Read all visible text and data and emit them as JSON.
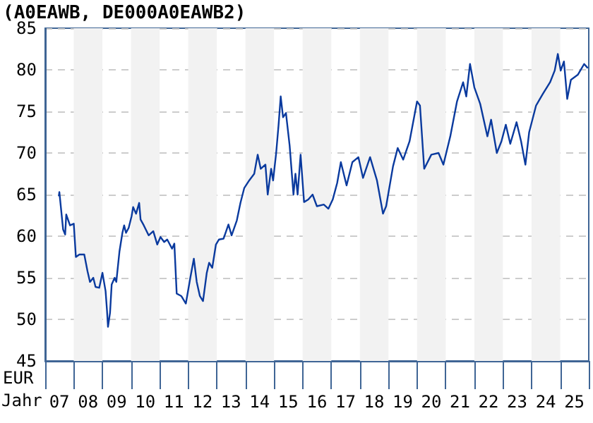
{
  "chart_data": {
    "type": "line",
    "title": "(A0EAWB, DE000A0EAWB2)",
    "xlabel": "Jahr",
    "ylabel": "EUR",
    "series": [
      {
        "color": "#0a3a9e",
        "x": [
          "2007-06-24",
          "2007-07-01",
          "2007-08-18",
          "2007-09-13",
          "2007-09-27",
          "2007-11-14",
          "2008-01-01",
          "2008-01-28",
          "2008-03-13",
          "2008-05-14",
          "2008-06-24",
          "2008-07-26",
          "2008-09-06",
          "2008-10-05",
          "2008-11-21",
          "2009-01-01",
          "2009-02-10",
          "2009-02-28",
          "2009-03-13",
          "2009-04-08",
          "2009-04-29",
          "2009-06-06",
          "2009-06-27",
          "2009-08-07",
          "2009-09-13",
          "2009-10-05",
          "2009-10-29",
          "2009-12-02",
          "2010-01-08",
          "2010-01-28",
          "2010-03-06",
          "2010-04-15",
          "2010-05-03",
          "2010-06-13",
          "2010-08-14",
          "2010-10-12",
          "2010-12-02",
          "2011-01-12",
          "2011-02-28",
          "2011-04-08",
          "2011-06-09",
          "2011-07-08",
          "2011-08-07",
          "2011-10-05",
          "2011-12-02",
          "2012-01-28",
          "2012-03-13",
          "2012-04-19",
          "2012-05-29",
          "2012-07-08",
          "2012-08-25",
          "2012-09-24",
          "2012-11-03",
          "2012-12-20",
          "2013-01-28",
          "2013-03-27",
          "2013-05-29",
          "2013-07-08",
          "2013-09-13",
          "2013-10-29",
          "2013-12-17",
          "2014-02-18",
          "2014-04-23",
          "2014-06-06",
          "2014-07-15",
          "2014-09-13",
          "2014-10-12",
          "2014-11-25",
          "2014-12-20",
          "2015-01-28",
          "2015-02-28",
          "2015-03-27",
          "2015-04-26",
          "2015-06-02",
          "2015-07-19",
          "2015-09-06",
          "2015-10-01",
          "2015-10-29",
          "2015-12-06",
          "2016-01-19",
          "2016-03-13",
          "2016-05-07",
          "2016-07-01",
          "2016-09-27",
          "2016-11-25",
          "2017-01-19",
          "2017-03-17",
          "2017-05-03",
          "2017-07-15",
          "2017-09-27",
          "2017-12-13",
          "2018-02-10",
          "2018-05-11",
          "2018-08-07",
          "2018-10-23",
          "2018-12-02",
          "2019-02-28",
          "2019-04-29",
          "2019-07-08",
          "2019-09-27",
          "2020-01-01",
          "2020-02-07",
          "2020-04-01",
          "2020-07-01",
          "2020-10-01",
          "2020-12-02",
          "2021-02-28",
          "2021-05-25",
          "2021-08-11",
          "2021-09-20",
          "2021-11-07",
          "2022-01-01",
          "2022-03-17",
          "2022-06-17",
          "2022-08-03",
          "2022-10-15",
          "2022-12-13",
          "2023-02-07",
          "2023-04-05",
          "2023-06-24",
          "2023-08-21",
          "2023-10-15",
          "2023-12-02",
          "2024-02-28",
          "2024-05-25",
          "2024-08-25",
          "2024-10-23",
          "2024-12-02",
          "2025-01-08",
          "2025-02-18",
          "2025-04-01",
          "2025-05-18",
          "2025-08-14",
          "2025-11-03",
          "2025-12-20"
        ],
        "values": [
          64.8,
          65.3,
          60.8,
          60.2,
          62.6,
          61.3,
          61.5,
          57.5,
          57.8,
          57.8,
          55.8,
          54.5,
          55.0,
          53.9,
          53.8,
          55.6,
          53.4,
          51.1,
          49.1,
          50.8,
          54.2,
          55.0,
          54.5,
          58.2,
          60.4,
          61.3,
          60.4,
          61.0,
          62.4,
          63.5,
          62.7,
          64.0,
          62.0,
          61.3,
          60.1,
          60.6,
          59.0,
          59.9,
          59.3,
          59.6,
          58.5,
          59.1,
          53.1,
          52.8,
          51.9,
          55.0,
          57.3,
          54.5,
          52.8,
          52.2,
          55.6,
          56.8,
          56.2,
          59.0,
          59.6,
          59.7,
          61.4,
          60.1,
          61.9,
          64.0,
          65.8,
          66.7,
          67.5,
          69.8,
          68.1,
          68.6,
          65.0,
          68.1,
          66.7,
          70.0,
          73.4,
          76.8,
          74.3,
          74.8,
          70.9,
          65.0,
          67.5,
          65.0,
          69.8,
          64.1,
          64.4,
          65.0,
          63.6,
          63.8,
          63.3,
          64.4,
          66.4,
          68.9,
          66.1,
          68.9,
          69.5,
          67.0,
          69.5,
          66.7,
          62.7,
          63.6,
          68.4,
          70.6,
          69.2,
          71.4,
          76.2,
          75.7,
          68.1,
          69.8,
          70.0,
          68.6,
          72.0,
          76.2,
          78.5,
          76.8,
          80.7,
          77.9,
          75.9,
          72.0,
          74.0,
          70.0,
          71.4,
          73.4,
          71.1,
          73.7,
          71.4,
          68.6,
          72.5,
          75.7,
          77.1,
          78.5,
          79.9,
          81.9,
          79.9,
          81.0,
          76.5,
          78.8,
          79.4,
          80.7,
          80.2
        ]
      }
    ],
    "xlim": [
      "2007-01-01",
      "2026-01-01"
    ],
    "xticks": [
      {
        "value": "2007-07-01",
        "label": "07"
      },
      {
        "value": "2008-07-01",
        "label": "08"
      },
      {
        "value": "2009-07-01",
        "label": "09"
      },
      {
        "value": "2010-07-01",
        "label": "10"
      },
      {
        "value": "2011-07-01",
        "label": "11"
      },
      {
        "value": "2012-07-01",
        "label": "12"
      },
      {
        "value": "2013-07-01",
        "label": "13"
      },
      {
        "value": "2014-07-01",
        "label": "14"
      },
      {
        "value": "2015-07-01",
        "label": "15"
      },
      {
        "value": "2016-07-01",
        "label": "16"
      },
      {
        "value": "2017-07-01",
        "label": "17"
      },
      {
        "value": "2018-07-01",
        "label": "18"
      },
      {
        "value": "2019-07-01",
        "label": "19"
      },
      {
        "value": "2020-07-01",
        "label": "20"
      },
      {
        "value": "2021-07-01",
        "label": "21"
      },
      {
        "value": "2022-07-01",
        "label": "22"
      },
      {
        "value": "2023-07-01",
        "label": "23"
      },
      {
        "value": "2024-07-01",
        "label": "24"
      },
      {
        "value": "2025-07-01",
        "label": "25"
      }
    ],
    "ylim": [
      45,
      85
    ],
    "yticks": [
      45,
      50,
      55,
      60,
      65,
      70,
      75,
      80,
      85
    ],
    "grid": "y",
    "marker": "none",
    "line_style": "solid",
    "bands": [
      {
        "axis": "x",
        "from": "2008-01-01",
        "to": "2009-01-01",
        "color": "#f2f2f2"
      },
      {
        "axis": "x",
        "from": "2010-01-01",
        "to": "2011-01-01",
        "color": "#f2f2f2"
      },
      {
        "axis": "x",
        "from": "2012-01-01",
        "to": "2013-01-01",
        "color": "#f2f2f2"
      },
      {
        "axis": "x",
        "from": "2014-01-01",
        "to": "2015-01-01",
        "color": "#f2f2f2"
      },
      {
        "axis": "x",
        "from": "2016-01-01",
        "to": "2017-01-01",
        "color": "#f2f2f2"
      },
      {
        "axis": "x",
        "from": "2018-01-01",
        "to": "2019-01-01",
        "color": "#f2f2f2"
      },
      {
        "axis": "x",
        "from": "2020-01-01",
        "to": "2021-01-01",
        "color": "#f2f2f2"
      },
      {
        "axis": "x",
        "from": "2022-01-01",
        "to": "2023-01-01",
        "color": "#f2f2f2"
      },
      {
        "axis": "x",
        "from": "2024-01-01",
        "to": "2025-01-01",
        "color": "#f2f2f2"
      }
    ]
  }
}
